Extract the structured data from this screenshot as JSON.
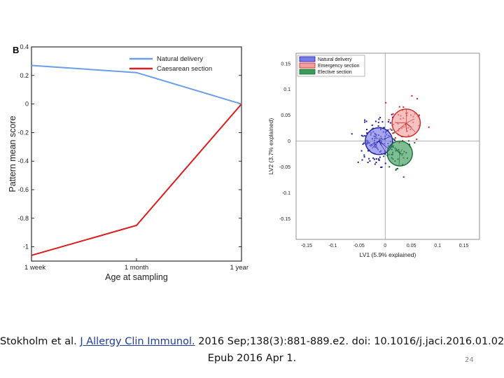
{
  "chart_data": [
    {
      "type": "line",
      "panel_label": "B",
      "x": [
        "1 week",
        "1 month",
        "1 year"
      ],
      "series": [
        {
          "name": "Natural delivery",
          "color": "#6a9ee8",
          "values": [
            0.27,
            0.22,
            0.0
          ]
        },
        {
          "name": "Caesarean section",
          "color": "#dd1c1c",
          "values": [
            -1.06,
            -0.85,
            0.0
          ]
        }
      ],
      "xlabel": "Age at sampling",
      "ylabel": "Pattern mean score",
      "ylim": [
        -1.1,
        0.4
      ],
      "yticks": [
        "0.4",
        "0.2",
        "0",
        "-0.2",
        "-0.4",
        "-0.6",
        "-0.8",
        "-1"
      ],
      "legend": "top-right"
    },
    {
      "type": "scatter",
      "xlabel": "LV1 (5.9% explained)",
      "ylabel": "LV2 (3.7% explained)",
      "xlim": [
        -0.17,
        0.18
      ],
      "ylim": [
        -0.19,
        0.17
      ],
      "xticks": [
        "-0.15",
        "-0.1",
        "-0.05",
        "0",
        "0.05",
        "0.1",
        "0.15"
      ],
      "yticks": [
        "0.15",
        "0.1",
        "0.05",
        "0",
        "-0.05",
        "-0.1",
        "-0.15"
      ],
      "legend": "top-left",
      "groups": [
        {
          "name": "Natural delivery",
          "color": "#1a1aa0",
          "fill": "#7a7ae8",
          "center": [
            -0.012,
            0.0
          ],
          "radius": 0.026
        },
        {
          "name": "Emergency section",
          "color": "#d42020",
          "fill": "#f0a0a0",
          "center": [
            0.04,
            0.035
          ],
          "radius": 0.027
        },
        {
          "name": "Elective section",
          "color": "#156a30",
          "fill": "#3a9a5a",
          "center": [
            0.028,
            -0.024
          ],
          "radius": 0.024
        }
      ]
    }
  ],
  "caption": {
    "prefix": "Stokholm et al. ",
    "journal": "J Allergy Clin Immunol.",
    "suffix": " 2016 Sep;138(3):881-889.e2. doi: 10.1016/j.jaci.2016.01.02",
    "line2": "Epub 2016 Apr 1."
  },
  "slide_number": "24"
}
